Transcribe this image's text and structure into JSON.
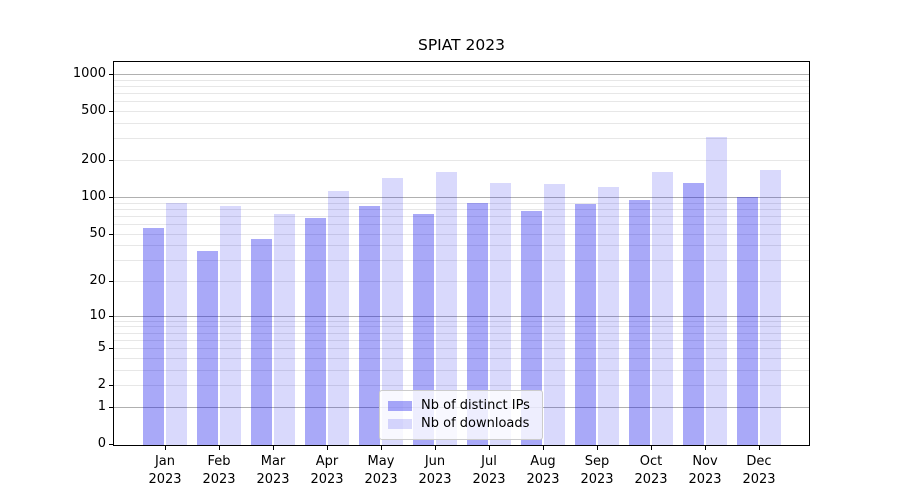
{
  "figure": {
    "title": "SPIAT 2023"
  },
  "chart_data": {
    "type": "bar",
    "title": "SPIAT 2023",
    "categories": [
      "Jan 2023",
      "Feb 2023",
      "Mar 2023",
      "Apr 2023",
      "May 2023",
      "Jun 2023",
      "Jul 2023",
      "Aug 2023",
      "Sep 2023",
      "Oct 2023",
      "Nov 2023",
      "Dec 2023"
    ],
    "series": [
      {
        "name": "Nb of distinct IPs",
        "color": "rgba(10,10,235,0.35)",
        "solid_color": "#a8a8f6",
        "values": [
          55,
          36,
          45,
          67,
          85,
          72,
          90,
          77,
          88,
          94,
          130,
          100
        ]
      },
      {
        "name": "Nb of downloads",
        "color": "rgba(10,10,235,0.155)",
        "solid_color": "#d9d9fa",
        "values": [
          90,
          85,
          72,
          112,
          142,
          160,
          130,
          127,
          120,
          160,
          310,
          165
        ]
      }
    ],
    "yscale": "log1p",
    "ylim": [
      0,
      1300
    ],
    "yticks": [
      0,
      1,
      2,
      5,
      10,
      20,
      50,
      100,
      200,
      500,
      1000
    ],
    "grid": "both",
    "grid_major_values": [
      1,
      10,
      100,
      1000
    ],
    "grid_minor_values": [
      2,
      3,
      4,
      5,
      6,
      7,
      8,
      9,
      20,
      30,
      40,
      50,
      60,
      70,
      80,
      90,
      200,
      300,
      400,
      500,
      600,
      700,
      800,
      900
    ],
    "grid_major_color": "#b0b0b0",
    "grid_minor_color": "#e7e7e7",
    "legend_position": "lower center",
    "xlabel": "",
    "ylabel": ""
  }
}
